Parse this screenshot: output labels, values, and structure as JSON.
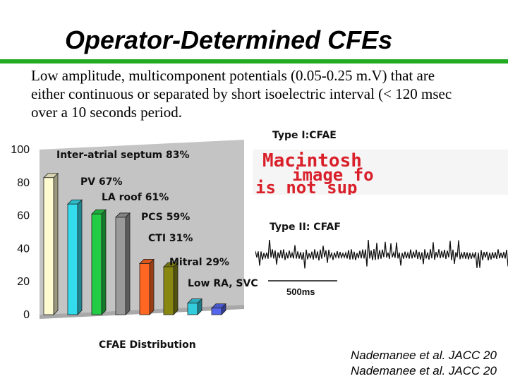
{
  "slide": {
    "title": "Operator-Determined CFEs",
    "rule_color": "#22aa22",
    "description_lines": [
      "Low amplitude, multicomponent potentials (0.05-0.25 m.V) that are",
      "either continuous or separated by short isoelectric interval (< 120 msec",
      "over a 10 seconds period."
    ]
  },
  "type1_label": "Type I:CFAE",
  "type2_label": "Type II: CFAF",
  "placeholder_image": {
    "lines": [
      "Macintosh",
      "image fo",
      "is not sup"
    ],
    "color": "#d9202a"
  },
  "scale_bar_label": "500ms",
  "citations": [
    "Nademanee et al. JACC 20",
    "Nademanee et al. JACC 20"
  ],
  "chart_data": {
    "type": "bar",
    "title": "CFAE Distribution",
    "categories": [
      "Inter-atrial septum 83%",
      "PV 67%",
      "LA roof 61%",
      "PCS 59%",
      "CTI 31%",
      "Mitral 29%",
      "Low RA, SVC",
      ""
    ],
    "values": [
      83,
      67,
      61,
      59,
      31,
      29,
      7,
      4
    ],
    "colors": [
      "#fffbd0",
      "#33ddee",
      "#22cc44",
      "#9a9a9a",
      "#ff6622",
      "#888811",
      "#33ccdd",
      "#5566ee"
    ],
    "y_ticks": [
      "0",
      "20",
      "40",
      "60",
      "80",
      "100"
    ],
    "ylim": [
      0,
      100
    ],
    "grid": false,
    "legend": "none",
    "style": "3d"
  }
}
